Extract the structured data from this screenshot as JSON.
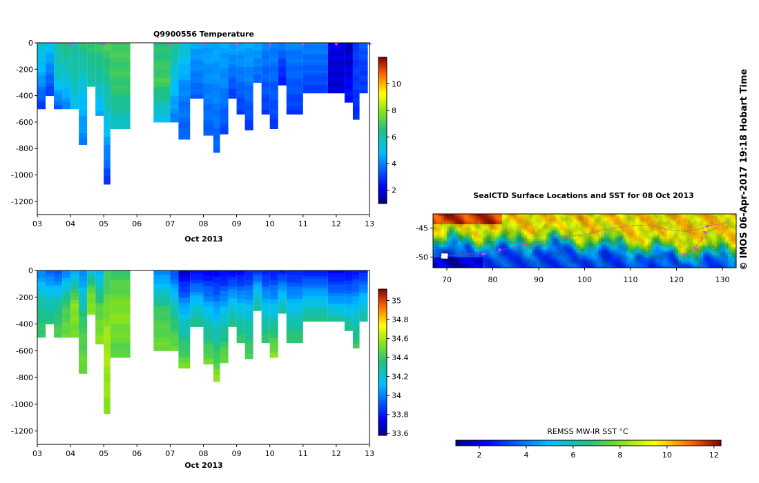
{
  "credit": "© IMOS 06-Apr-2017 19:18 Hobart Time",
  "temperature_title": "Q9900556  Temperature",
  "map_title": "SealCTD Surface Locations and SST for 08 Oct 2013",
  "sst_colorbar_label": "REMSS MW-IR SST °C",
  "colors": {
    "surface_marker": "#ff33ff",
    "track": "#cc33cc"
  },
  "chart_data": [
    {
      "type": "heatmap",
      "id": "temperature",
      "title": "Q9900556  Temperature",
      "xlabel": "Oct 2013",
      "ylabel": "",
      "xlim": [
        3,
        13
      ],
      "ylim": [
        -1300,
        0
      ],
      "xticks": [
        "03",
        "04",
        "05",
        "06",
        "07",
        "08",
        "09",
        "10",
        "11",
        "12",
        "13"
      ],
      "yticks": [
        "0",
        "-200",
        "-400",
        "-600",
        "-800",
        "-1000",
        "-1200"
      ],
      "colorbar": {
        "range": [
          1,
          12
        ],
        "ticks": [
          "2",
          "4",
          "6",
          "8",
          "10"
        ]
      },
      "surface_markers_day": [
        4.0,
        5.0,
        7.0,
        8.0,
        9.0,
        10.0,
        11.0,
        12.0,
        13.0
      ],
      "profiles": [
        {
          "t0": 3.0,
          "t1": 3.25,
          "depth": 500,
          "surface": 5.5,
          "mid": 4.5,
          "deep": 3.0
        },
        {
          "t0": 3.25,
          "t1": 3.5,
          "depth": 400,
          "surface": 5.0,
          "mid": 4.0,
          "deep": 3.0
        },
        {
          "t0": 3.5,
          "t1": 3.75,
          "depth": 500,
          "surface": 6.0,
          "mid": 5.5,
          "deep": 3.5
        },
        {
          "t0": 3.75,
          "t1": 4.0,
          "depth": 500,
          "surface": 6.5,
          "mid": 5.5,
          "deep": 4.0
        },
        {
          "t0": 4.0,
          "t1": 4.25,
          "depth": 500,
          "surface": 6.0,
          "mid": 6.0,
          "deep": 5.0
        },
        {
          "t0": 4.25,
          "t1": 4.5,
          "depth": 770,
          "surface": 6.5,
          "mid": 5.0,
          "deep": 4.0
        },
        {
          "t0": 4.5,
          "t1": 4.75,
          "depth": 330,
          "surface": 6.8,
          "mid": 6.2,
          "deep": 6.0
        },
        {
          "t0": 4.75,
          "t1": 5.0,
          "depth": 550,
          "surface": 6.8,
          "mid": 6.0,
          "deep": 4.5
        },
        {
          "t0": 5.0,
          "t1": 5.2,
          "depth": 1070,
          "surface": 7.0,
          "mid": 5.5,
          "deep": 3.0
        },
        {
          "t0": 5.2,
          "t1": 5.8,
          "depth": 650,
          "surface": 7.0,
          "mid": 6.8,
          "deep": 5.5
        },
        {
          "t0": 6.5,
          "t1": 7.0,
          "depth": 600,
          "surface": 6.5,
          "mid": 7.0,
          "deep": 5.0
        },
        {
          "t0": 7.0,
          "t1": 7.25,
          "depth": 600,
          "surface": 6.5,
          "mid": 5.0,
          "deep": 4.0
        },
        {
          "t0": 7.25,
          "t1": 7.6,
          "depth": 730,
          "surface": 5.5,
          "mid": 4.0,
          "deep": 3.5
        },
        {
          "t0": 7.6,
          "t1": 8.0,
          "depth": 420,
          "surface": 4.5,
          "mid": 4.0,
          "deep": 3.5
        },
        {
          "t0": 8.0,
          "t1": 8.3,
          "depth": 700,
          "surface": 4.5,
          "mid": 4.0,
          "deep": 3.5
        },
        {
          "t0": 8.3,
          "t1": 8.5,
          "depth": 830,
          "surface": 4.5,
          "mid": 4.0,
          "deep": 3.5
        },
        {
          "t0": 8.5,
          "t1": 8.75,
          "depth": 690,
          "surface": 4.5,
          "mid": 4.0,
          "deep": 3.2
        },
        {
          "t0": 8.75,
          "t1": 9.0,
          "depth": 420,
          "surface": 4.5,
          "mid": 3.8,
          "deep": 3.0
        },
        {
          "t0": 9.0,
          "t1": 9.25,
          "depth": 540,
          "surface": 4.5,
          "mid": 3.8,
          "deep": 3.0
        },
        {
          "t0": 9.25,
          "t1": 9.5,
          "depth": 660,
          "surface": 4.5,
          "mid": 3.8,
          "deep": 3.0
        },
        {
          "t0": 9.5,
          "t1": 9.75,
          "depth": 300,
          "surface": 4.5,
          "mid": 4.0,
          "deep": 3.5
        },
        {
          "t0": 9.75,
          "t1": 10.0,
          "depth": 540,
          "surface": 4.0,
          "mid": 3.5,
          "deep": 3.0
        },
        {
          "t0": 10.0,
          "t1": 10.25,
          "depth": 650,
          "surface": 4.0,
          "mid": 3.5,
          "deep": 3.0
        },
        {
          "t0": 10.25,
          "t1": 10.5,
          "depth": 320,
          "surface": 4.0,
          "mid": 3.0,
          "deep": 2.5
        },
        {
          "t0": 10.5,
          "t1": 11.0,
          "depth": 540,
          "surface": 4.0,
          "mid": 3.5,
          "deep": 3.0
        },
        {
          "t0": 11.0,
          "t1": 11.75,
          "depth": 380,
          "surface": 4.0,
          "mid": 3.5,
          "deep": 3.0
        },
        {
          "t0": 11.75,
          "t1": 12.25,
          "depth": 380,
          "surface": 2.0,
          "mid": 1.8,
          "deep": 1.8
        },
        {
          "t0": 12.25,
          "t1": 12.5,
          "depth": 450,
          "surface": 1.5,
          "mid": 2.0,
          "deep": 2.5
        },
        {
          "t0": 12.5,
          "t1": 12.7,
          "depth": 580,
          "surface": 3.0,
          "mid": 3.0,
          "deep": 2.8
        },
        {
          "t0": 12.7,
          "t1": 12.95,
          "depth": 380,
          "surface": 3.5,
          "mid": 3.0,
          "deep": 3.0
        }
      ]
    },
    {
      "type": "heatmap",
      "id": "salinity",
      "title": "",
      "xlabel": "Oct 2013",
      "ylabel": "",
      "xlim": [
        3,
        13
      ],
      "ylim": [
        -1300,
        0
      ],
      "xticks": [
        "03",
        "04",
        "05",
        "06",
        "07",
        "08",
        "09",
        "10",
        "11",
        "12",
        "13"
      ],
      "yticks": [
        "0",
        "-200",
        "-400",
        "-600",
        "-800",
        "-1000",
        "-1200"
      ],
      "colorbar": {
        "range": [
          33.58,
          35.12
        ],
        "ticks": [
          "33.6",
          "33.8",
          "34",
          "34.2",
          "34.4",
          "34.6",
          "34.8",
          "35"
        ]
      },
      "profiles": [
        {
          "t0": 3.0,
          "t1": 3.25,
          "depth": 500,
          "surface": 34.0,
          "mid": 34.3,
          "deep": 34.4
        },
        {
          "t0": 3.25,
          "t1": 3.5,
          "depth": 400,
          "surface": 33.95,
          "mid": 34.2,
          "deep": 34.35
        },
        {
          "t0": 3.5,
          "t1": 3.75,
          "depth": 500,
          "surface": 33.9,
          "mid": 34.3,
          "deep": 34.45
        },
        {
          "t0": 3.75,
          "t1": 4.0,
          "depth": 500,
          "surface": 34.0,
          "mid": 34.4,
          "deep": 34.5
        },
        {
          "t0": 4.0,
          "t1": 4.25,
          "depth": 500,
          "surface": 34.1,
          "mid": 34.55,
          "deep": 34.5
        },
        {
          "t0": 4.25,
          "t1": 4.5,
          "depth": 770,
          "surface": 34.0,
          "mid": 34.4,
          "deep": 34.5
        },
        {
          "t0": 4.5,
          "t1": 4.75,
          "depth": 330,
          "surface": 34.2,
          "mid": 34.5,
          "deep": 34.55
        },
        {
          "t0": 4.75,
          "t1": 5.0,
          "depth": 550,
          "surface": 34.1,
          "mid": 34.45,
          "deep": 34.55
        },
        {
          "t0": 5.0,
          "t1": 5.2,
          "depth": 1070,
          "surface": 34.4,
          "mid": 34.6,
          "deep": 34.55
        },
        {
          "t0": 5.2,
          "t1": 5.8,
          "depth": 650,
          "surface": 34.4,
          "mid": 34.55,
          "deep": 34.45
        },
        {
          "t0": 6.5,
          "t1": 7.0,
          "depth": 600,
          "surface": 34.0,
          "mid": 34.4,
          "deep": 34.5
        },
        {
          "t0": 7.0,
          "t1": 7.25,
          "depth": 600,
          "surface": 33.9,
          "mid": 34.3,
          "deep": 34.5
        },
        {
          "t0": 7.25,
          "t1": 7.6,
          "depth": 730,
          "surface": 33.7,
          "mid": 34.2,
          "deep": 34.5
        },
        {
          "t0": 7.6,
          "t1": 8.0,
          "depth": 420,
          "surface": 33.75,
          "mid": 34.1,
          "deep": 34.35
        },
        {
          "t0": 8.0,
          "t1": 8.3,
          "depth": 700,
          "surface": 33.75,
          "mid": 34.2,
          "deep": 34.5
        },
        {
          "t0": 8.3,
          "t1": 8.5,
          "depth": 830,
          "surface": 33.75,
          "mid": 34.2,
          "deep": 34.55
        },
        {
          "t0": 8.5,
          "t1": 8.75,
          "depth": 690,
          "surface": 33.75,
          "mid": 34.2,
          "deep": 34.5
        },
        {
          "t0": 8.75,
          "t1": 9.0,
          "depth": 420,
          "surface": 33.75,
          "mid": 34.1,
          "deep": 34.35
        },
        {
          "t0": 9.0,
          "t1": 9.25,
          "depth": 540,
          "surface": 33.75,
          "mid": 34.15,
          "deep": 34.4
        },
        {
          "t0": 9.25,
          "t1": 9.5,
          "depth": 660,
          "surface": 33.8,
          "mid": 34.2,
          "deep": 34.45
        },
        {
          "t0": 9.5,
          "t1": 9.75,
          "depth": 300,
          "surface": 33.85,
          "mid": 34.15,
          "deep": 34.3
        },
        {
          "t0": 9.75,
          "t1": 10.0,
          "depth": 540,
          "surface": 33.8,
          "mid": 34.15,
          "deep": 34.4
        },
        {
          "t0": 10.0,
          "t1": 10.25,
          "depth": 650,
          "surface": 33.8,
          "mid": 34.2,
          "deep": 34.55
        },
        {
          "t0": 10.25,
          "t1": 10.5,
          "depth": 320,
          "surface": 33.8,
          "mid": 34.1,
          "deep": 34.3
        },
        {
          "t0": 10.5,
          "t1": 11.0,
          "depth": 540,
          "surface": 33.8,
          "mid": 34.15,
          "deep": 34.4
        },
        {
          "t0": 11.0,
          "t1": 11.75,
          "depth": 380,
          "surface": 33.8,
          "mid": 34.1,
          "deep": 34.35
        },
        {
          "t0": 11.75,
          "t1": 12.25,
          "depth": 380,
          "surface": 33.75,
          "mid": 34.0,
          "deep": 34.3
        },
        {
          "t0": 12.25,
          "t1": 12.5,
          "depth": 450,
          "surface": 33.75,
          "mid": 34.05,
          "deep": 34.35
        },
        {
          "t0": 12.5,
          "t1": 12.7,
          "depth": 580,
          "surface": 33.8,
          "mid": 34.15,
          "deep": 34.4
        },
        {
          "t0": 12.7,
          "t1": 12.95,
          "depth": 380,
          "surface": 33.8,
          "mid": 34.1,
          "deep": 34.3
        }
      ]
    },
    {
      "type": "heatmap",
      "id": "sst_map",
      "title": "SealCTD Surface Locations and SST for 08 Oct 2013",
      "xlabel": "",
      "ylabel": "",
      "xlim": [
        67,
        133
      ],
      "ylim": [
        -51.8,
        -42.6
      ],
      "xticks": [
        "70",
        "80",
        "90",
        "100",
        "110",
        "120",
        "130"
      ],
      "yticks": [
        "-45",
        "-50"
      ],
      "sst_front_lat": [
        [
          67,
          -47.5
        ],
        [
          75,
          -47.0
        ],
        [
          82,
          -47.5
        ],
        [
          90,
          -47.0
        ],
        [
          100,
          -47.5
        ],
        [
          110,
          -48.0
        ],
        [
          120,
          -49.0
        ],
        [
          133,
          -49.0
        ]
      ],
      "track_lonlat": [
        [
          69.5,
          -49.8
        ],
        [
          72,
          -49.7
        ],
        [
          75,
          -49.4
        ],
        [
          78,
          -49.5
        ],
        [
          81,
          -49.0
        ],
        [
          84,
          -48.3
        ],
        [
          87,
          -48.0
        ],
        [
          90,
          -47.4
        ],
        [
          95,
          -46.5
        ],
        [
          100,
          -46.2
        ],
        [
          105,
          -45.2
        ],
        [
          110,
          -44.6
        ],
        [
          114,
          -44.5
        ],
        [
          118,
          -45.3
        ],
        [
          122,
          -45.6
        ],
        [
          125,
          -45.2
        ],
        [
          127,
          -44.6
        ],
        [
          129,
          -44.4
        ],
        [
          131,
          -44.0
        ],
        [
          127,
          -45.6
        ],
        [
          125,
          -47.5
        ],
        [
          123,
          -49.0
        ],
        [
          121,
          -50.0
        ]
      ],
      "surface_locations": [
        [
          78,
          -49.5
        ],
        [
          81.5,
          -48.8
        ],
        [
          87,
          -47.9
        ],
        [
          121.5,
          -49.6
        ],
        [
          124.2,
          -48.6
        ],
        [
          126.2,
          -45.8
        ],
        [
          126.8,
          -44.7
        ]
      ],
      "start_marker": [
        69.5,
        -49.8
      ]
    },
    {
      "type": "heatmap",
      "id": "sst_colorbar",
      "title": "REMSS MW-IR SST °C",
      "range": [
        1,
        12.3
      ],
      "ticks": [
        "2",
        "4",
        "6",
        "8",
        "10",
        "12"
      ]
    }
  ]
}
